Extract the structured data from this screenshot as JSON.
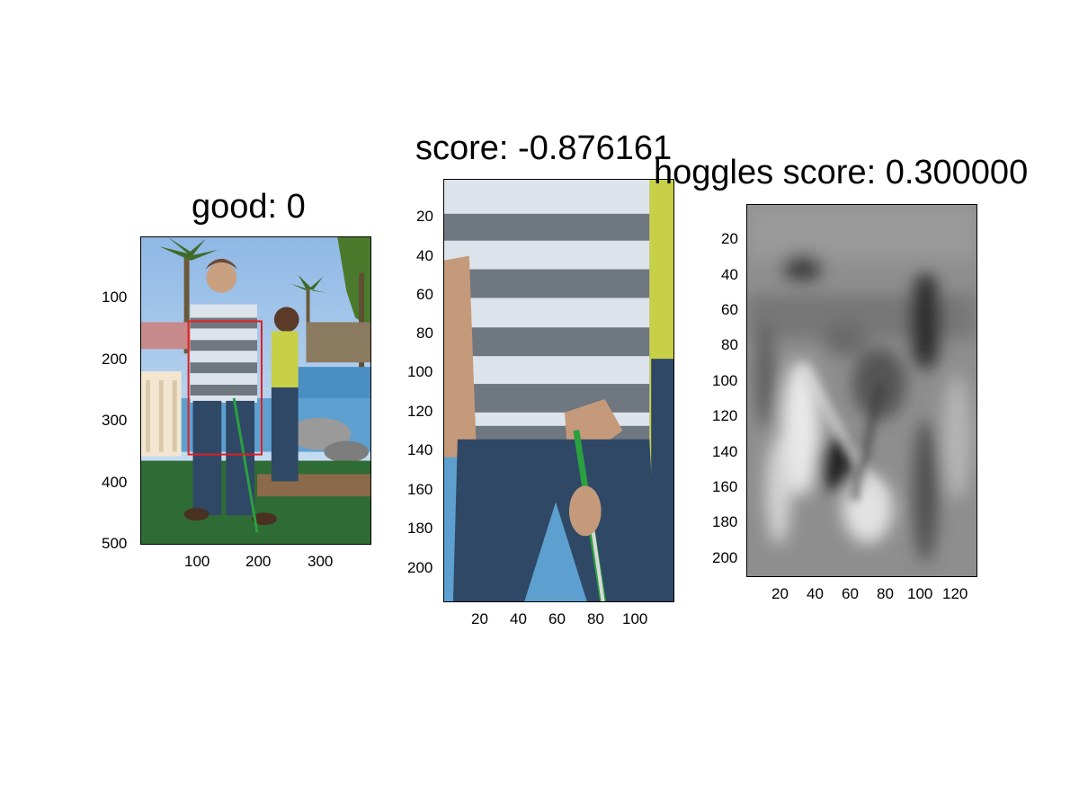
{
  "panels": [
    {
      "title": "good: 0",
      "yticks": [
        "100",
        "200",
        "300",
        "400",
        "500"
      ],
      "xticks": [
        "100",
        "200",
        "300"
      ],
      "image": "full-scene-photo: man in striped polo holding putter at mini golf, woman behind, palm trees, red detection box"
    },
    {
      "title": "score: -0.876161",
      "yticks": [
        "20",
        "40",
        "60",
        "80",
        "100",
        "120",
        "140",
        "160",
        "180",
        "200"
      ],
      "xticks": [
        "20",
        "40",
        "60",
        "80",
        "100"
      ],
      "image": "cropped-photo: torso in grey/white striped shirt, jeans, green putter"
    },
    {
      "title": "hoggles score: 0.300000",
      "yticks": [
        "20",
        "40",
        "60",
        "80",
        "100",
        "120",
        "140",
        "160",
        "180",
        "200"
      ],
      "xticks": [
        "20",
        "40",
        "60",
        "80",
        "100",
        "120"
      ],
      "image": "grayscale-hoggles-reconstruction"
    }
  ],
  "colors": {
    "detection_box": "#e02020",
    "shirt_grey": "#6f7780",
    "shirt_white": "#dde3ea",
    "jeans": "#2f4866",
    "grass": "#2f6b34",
    "sky": "#b9d6f0",
    "water": "#4a8fc4"
  }
}
